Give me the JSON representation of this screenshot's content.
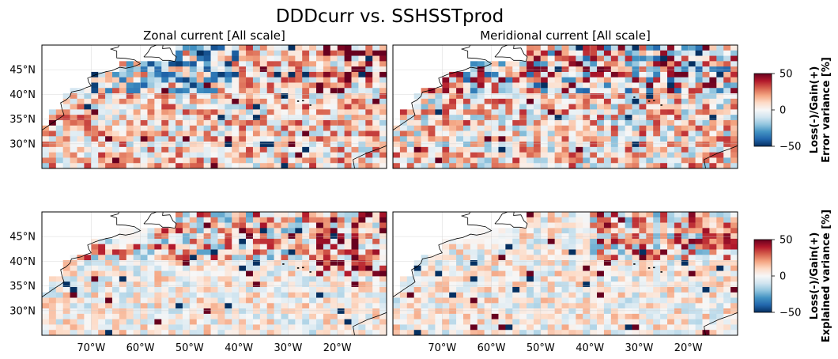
{
  "figure": {
    "title": "DDDcurr vs. SSHSSTprod"
  },
  "chart_data": {
    "type": "heatmap",
    "colormap": "RdBu_r",
    "lon_range": [
      -80,
      -10
    ],
    "lat_range": [
      25,
      50
    ],
    "xticks": [
      {
        "lon": -70,
        "label": "70°W"
      },
      {
        "lon": -60,
        "label": "60°W"
      },
      {
        "lon": -50,
        "label": "50°W"
      },
      {
        "lon": -40,
        "label": "40°W"
      },
      {
        "lon": -30,
        "label": "30°W"
      },
      {
        "lon": -20,
        "label": "20°W"
      }
    ],
    "yticks": [
      {
        "lat": 30,
        "label": "30°N"
      },
      {
        "lat": 35,
        "label": "35°N"
      },
      {
        "lat": 40,
        "label": "40°N"
      },
      {
        "lat": 45,
        "label": "45°N"
      }
    ],
    "panels": [
      {
        "title": "Zonal current [All scale]",
        "row": 0,
        "col": 0
      },
      {
        "title": "Meridional current [All scale]",
        "row": 0,
        "col": 1
      },
      {
        "title": "",
        "row": 1,
        "col": 0
      },
      {
        "title": "",
        "row": 1,
        "col": 1
      }
    ],
    "colorbars": [
      {
        "row": 0,
        "label_line1": "Loss(-)/Gain(+)",
        "label_line2": "Error variance [%]",
        "vmin": -50,
        "vmax": 50,
        "ticks": [
          {
            "v": 50,
            "t": "50"
          },
          {
            "v": 0,
            "t": "0"
          },
          {
            "v": -50,
            "t": "−50"
          }
        ]
      },
      {
        "row": 1,
        "label_line1": "Loss(-)/Gain(+)",
        "label_line2": "Explained variance [%]",
        "vmin": -50,
        "vmax": 50,
        "ticks": [
          {
            "v": 50,
            "t": "50"
          },
          {
            "v": 0,
            "t": "0"
          },
          {
            "v": -50,
            "t": "−50"
          }
        ]
      }
    ],
    "grid": true
  }
}
